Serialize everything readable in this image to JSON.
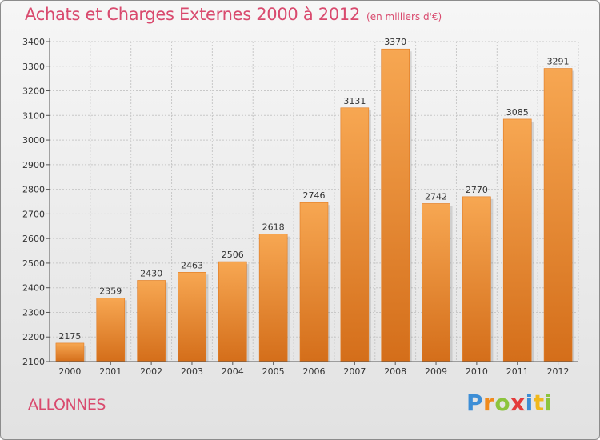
{
  "header": {
    "title": "Achats et Charges Externes 2000 à 2012",
    "subtitle": "(en milliers d'€)"
  },
  "footer": {
    "commune": "ALLONNES",
    "brand": "Proxiti",
    "brand_letters": [
      {
        "ch": "P",
        "color": "#3d8ed6"
      },
      {
        "ch": "r",
        "color": "#f08a1c"
      },
      {
        "ch": "o",
        "color": "#8cc43d"
      },
      {
        "ch": "x",
        "color": "#e43b3b"
      },
      {
        "ch": "i",
        "color": "#3d8ed6"
      },
      {
        "ch": "t",
        "color": "#f0b81c"
      },
      {
        "ch": "i",
        "color": "#8cc43d"
      }
    ]
  },
  "chart_data": {
    "type": "bar",
    "categories": [
      "2000",
      "2001",
      "2002",
      "2003",
      "2004",
      "2005",
      "2006",
      "2007",
      "2008",
      "2009",
      "2010",
      "2011",
      "2012"
    ],
    "values": [
      2175,
      2359,
      2430,
      2463,
      2506,
      2618,
      2746,
      3131,
      3370,
      2742,
      2770,
      3085,
      3291
    ],
    "title": "Achats et Charges Externes 2000 à 2012",
    "subtitle": "(en milliers d'€)",
    "ylim": [
      2100,
      3400
    ],
    "yticks": [
      2100,
      2200,
      2300,
      2400,
      2500,
      2600,
      2700,
      2800,
      2900,
      3000,
      3100,
      3200,
      3300,
      3400
    ],
    "grid": true,
    "colors": {
      "bar_light": "#f7a752",
      "bar_dark": "#d46e1a",
      "grid": "#c8c8c8",
      "axis": "#555555",
      "title": "#d94a6e"
    }
  }
}
